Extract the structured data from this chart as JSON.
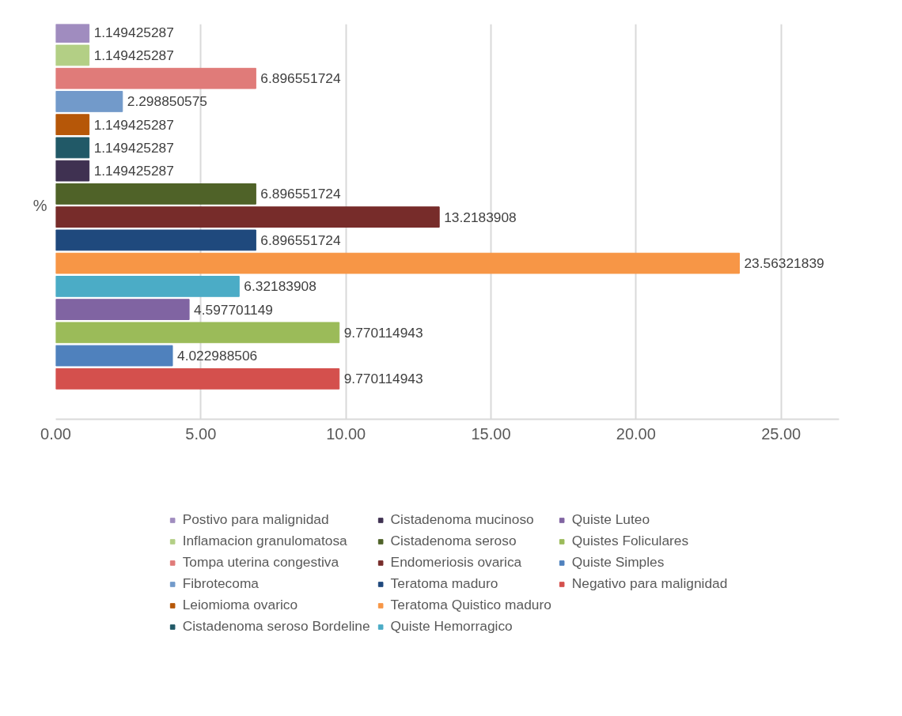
{
  "chart_data": {
    "type": "bar",
    "orientation": "horizontal",
    "categories": [
      "%"
    ],
    "xlim": [
      0,
      27
    ],
    "xticks": [
      {
        "value": 0,
        "label": "0.00"
      },
      {
        "value": 5,
        "label": "5.00"
      },
      {
        "value": 10,
        "label": "10.00"
      },
      {
        "value": 15,
        "label": "15.00"
      },
      {
        "value": 20,
        "label": "20.00"
      },
      {
        "value": 25,
        "label": "25.00"
      }
    ],
    "grid": "x",
    "legend": "bottom",
    "data_labels": true,
    "series": [
      {
        "name": "Negativo para malignidad",
        "color": "#d4504d",
        "values": [
          9.770114943
        ]
      },
      {
        "name": "Quiste Simples",
        "color": "#4f81bd",
        "values": [
          4.022988506
        ]
      },
      {
        "name": "Quistes Foliculares",
        "color": "#9bbb59",
        "values": [
          9.770114943
        ]
      },
      {
        "name": "Quiste Luteo",
        "color": "#8064a2",
        "values": [
          4.597701149
        ]
      },
      {
        "name": "Quiste Hemorragico",
        "color": "#4bacc6",
        "values": [
          6.32183908
        ]
      },
      {
        "name": "Teratoma Quistico maduro",
        "color": "#f79646",
        "values": [
          23.56321839
        ]
      },
      {
        "name": "Teratoma maduro",
        "color": "#1f497d",
        "values": [
          6.896551724
        ]
      },
      {
        "name": "Endomeriosis ovarica",
        "color": "#772c2a",
        "values": [
          13.2183908
        ]
      },
      {
        "name": "Cistadenoma seroso",
        "color": "#4f6228",
        "values": [
          6.896551724
        ]
      },
      {
        "name": "Cistadenoma mucinoso",
        "color": "#3f3151",
        "values": [
          1.149425287
        ]
      },
      {
        "name": "Cistadenoma seroso Bordeline",
        "color": "#215967",
        "values": [
          1.149425287
        ]
      },
      {
        "name": "Leiomioma ovarico",
        "color": "#b65708",
        "values": [
          1.149425287
        ]
      },
      {
        "name": "Fibrotecoma",
        "color": "#729aca",
        "values": [
          2.298850575
        ]
      },
      {
        "name": "Tompa uterina congestiva",
        "color": "#e07b79",
        "values": [
          6.896551724
        ]
      },
      {
        "name": "Inflamacion granulomatosa",
        "color": "#b3cf85",
        "values": [
          1.149425287
        ]
      },
      {
        "name": "Postivo para malignidad",
        "color": "#a08cbf",
        "values": [
          1.149425287
        ]
      }
    ]
  }
}
